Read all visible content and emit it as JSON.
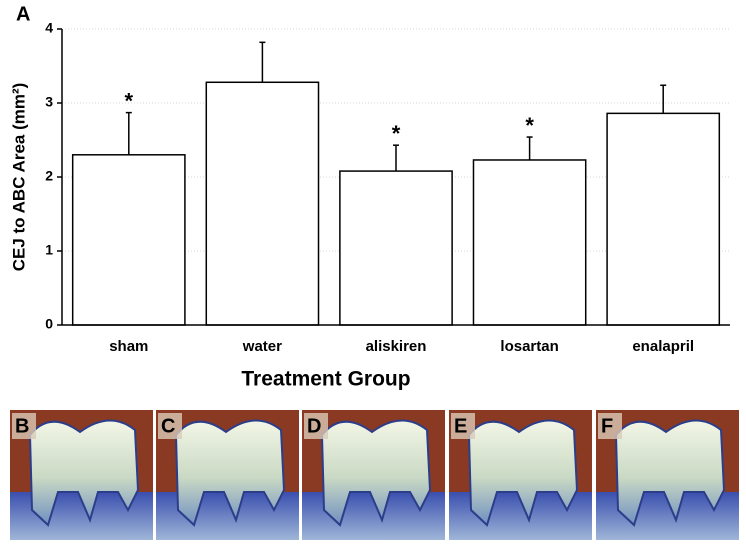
{
  "panel_label": "A",
  "chart_data": {
    "type": "bar",
    "x_label": "Treatment Group",
    "y_label": "CEJ to ABC Area (mm²)",
    "categories": [
      "sham",
      "water",
      "aliskiren",
      "losartan",
      "enalapril"
    ],
    "values": [
      2.3,
      3.28,
      2.08,
      2.23,
      2.86
    ],
    "errors": [
      0.57,
      0.54,
      0.35,
      0.31,
      0.38
    ],
    "markers": [
      "*",
      null,
      "*",
      "*",
      null
    ],
    "color": "#ffffff",
    "ylim": [
      0,
      4
    ],
    "yticks": [
      0,
      1,
      2,
      3,
      4
    ],
    "grid": true
  },
  "photo_panels": [
    "B",
    "C",
    "D",
    "E",
    "F"
  ]
}
